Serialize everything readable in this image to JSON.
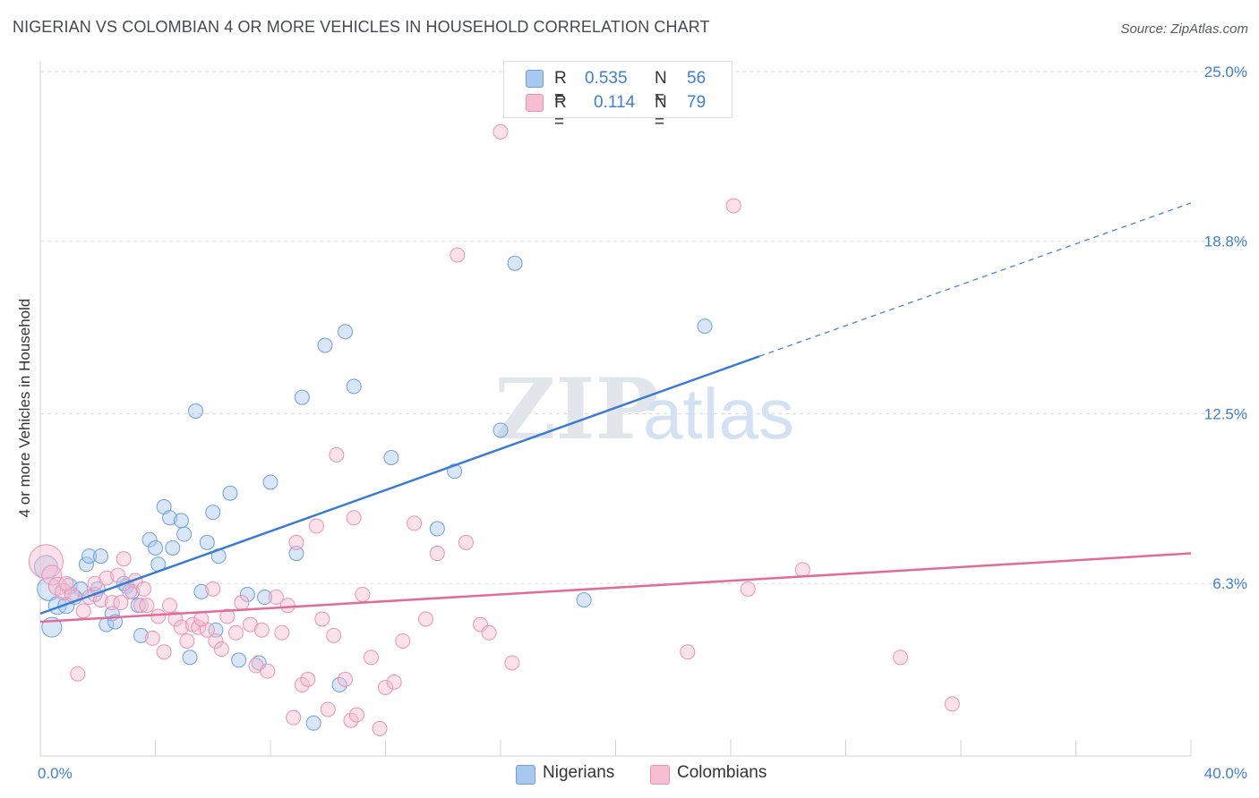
{
  "title": "NIGERIAN VS COLOMBIAN 4 OR MORE VEHICLES IN HOUSEHOLD CORRELATION CHART",
  "source": "Source: ZipAtlas.com",
  "watermark": {
    "zip": "ZIP",
    "atlas": "atlas"
  },
  "legend": {
    "r_label": "R =",
    "n_label": "N =",
    "nigerians": {
      "r": "0.535",
      "n": "56"
    },
    "colombians": {
      "r": "0.114",
      "n": "79"
    }
  },
  "colors": {
    "nigerians_fill": "#a9c8ef",
    "nigerians_stroke": "#6e9fdc",
    "nigerians_line": "#3a7bd5",
    "colombians_fill": "#f7bdd0",
    "colombians_stroke": "#ea93b1",
    "colombians_line": "#e06c97",
    "tick_label": "#3f7fd4"
  },
  "chart_data": {
    "type": "scatter",
    "title": "NIGERIAN VS COLOMBIAN 4 OR MORE VEHICLES IN HOUSEHOLD CORRELATION CHART",
    "xlabel": "",
    "ylabel": "4 or more Vehicles in Household",
    "xlim": [
      0,
      40
    ],
    "ylim": [
      0,
      25
    ],
    "x_tick_labels": [
      "0.0%",
      "40.0%"
    ],
    "y_ticks": [
      6.3,
      12.5,
      18.8,
      25.0
    ],
    "y_tick_labels": [
      "6.3%",
      "12.5%",
      "18.8%",
      "25.0%"
    ],
    "grid": true,
    "series": [
      {
        "name": "Nigerians",
        "r": 0.535,
        "n": 56,
        "trend": {
          "x0": 0,
          "y0": 5.2,
          "x1": 25,
          "y1": 14.6,
          "dash_to_x": 40,
          "dash_to_y": 20.2
        },
        "points": [
          [
            0.2,
            6.9,
            12
          ],
          [
            0.3,
            6.1,
            12
          ],
          [
            0.4,
            4.7,
            10
          ],
          [
            0.6,
            5.5,
            9
          ],
          [
            0.9,
            5.5,
            8
          ],
          [
            1.0,
            6.2,
            8
          ],
          [
            1.4,
            6.1,
            7
          ],
          [
            1.6,
            7.0,
            7
          ],
          [
            1.7,
            7.3,
            7
          ],
          [
            1.9,
            5.9,
            7
          ],
          [
            2.0,
            6.1,
            7
          ],
          [
            2.1,
            7.3,
            7
          ],
          [
            2.3,
            4.8,
            7
          ],
          [
            2.5,
            5.2,
            7
          ],
          [
            2.6,
            4.9,
            7
          ],
          [
            3.0,
            6.2,
            7
          ],
          [
            3.2,
            6.0,
            7
          ],
          [
            3.4,
            5.5,
            7
          ],
          [
            3.5,
            4.4,
            7
          ],
          [
            3.8,
            7.9,
            7
          ],
          [
            4.0,
            7.6,
            7
          ],
          [
            4.1,
            7.0,
            7
          ],
          [
            4.3,
            9.1,
            7
          ],
          [
            4.5,
            8.7,
            7
          ],
          [
            4.6,
            7.6,
            7
          ],
          [
            4.9,
            8.6,
            7
          ],
          [
            5.0,
            8.1,
            7
          ],
          [
            5.2,
            3.6,
            7
          ],
          [
            5.4,
            12.6,
            7
          ],
          [
            5.6,
            6.0,
            7
          ],
          [
            5.8,
            7.8,
            7
          ],
          [
            6.0,
            8.9,
            7
          ],
          [
            6.1,
            4.6,
            7
          ],
          [
            6.2,
            7.3,
            7
          ],
          [
            6.6,
            9.6,
            7
          ],
          [
            6.9,
            3.5,
            7
          ],
          [
            7.2,
            5.9,
            7
          ],
          [
            7.6,
            3.4,
            7
          ],
          [
            7.8,
            5.8,
            7
          ],
          [
            8.0,
            10.0,
            7
          ],
          [
            8.9,
            7.4,
            7
          ],
          [
            9.1,
            13.1,
            7
          ],
          [
            9.5,
            1.2,
            7
          ],
          [
            9.9,
            15.0,
            7
          ],
          [
            10.4,
            2.6,
            7
          ],
          [
            10.6,
            15.5,
            7
          ],
          [
            10.9,
            13.5,
            7
          ],
          [
            12.2,
            10.9,
            7
          ],
          [
            13.8,
            8.3,
            7
          ],
          [
            14.4,
            10.4,
            7
          ],
          [
            16.0,
            11.9,
            7
          ],
          [
            16.5,
            18.0,
            7
          ],
          [
            18.9,
            5.7,
            7
          ],
          [
            23.1,
            15.7,
            7
          ],
          [
            2.9,
            6.3,
            7
          ],
          [
            1.2,
            5.8,
            7
          ]
        ]
      },
      {
        "name": "Colombians",
        "r": 0.114,
        "n": 79,
        "trend": {
          "x0": 0,
          "y0": 4.9,
          "x1": 40,
          "y1": 7.4
        },
        "points": [
          [
            0.2,
            7.1,
            18
          ],
          [
            0.4,
            6.6,
            10
          ],
          [
            0.6,
            6.2,
            9
          ],
          [
            0.8,
            6.0,
            8
          ],
          [
            1.3,
            3.0,
            7
          ],
          [
            1.5,
            5.3,
            7
          ],
          [
            1.7,
            5.8,
            7
          ],
          [
            1.9,
            6.3,
            7
          ],
          [
            2.1,
            5.7,
            7
          ],
          [
            2.3,
            6.5,
            7
          ],
          [
            2.5,
            5.6,
            7
          ],
          [
            2.7,
            6.6,
            7
          ],
          [
            2.9,
            7.2,
            7
          ],
          [
            3.1,
            6.0,
            7
          ],
          [
            3.3,
            6.4,
            7
          ],
          [
            3.5,
            5.5,
            7
          ],
          [
            3.6,
            6.1,
            7
          ],
          [
            3.9,
            4.3,
            7
          ],
          [
            4.1,
            5.1,
            7
          ],
          [
            4.3,
            3.8,
            7
          ],
          [
            4.5,
            5.5,
            7
          ],
          [
            4.7,
            5.0,
            7
          ],
          [
            4.9,
            4.7,
            7
          ],
          [
            5.1,
            4.2,
            7
          ],
          [
            5.3,
            4.8,
            7
          ],
          [
            5.5,
            4.7,
            7
          ],
          [
            5.8,
            4.6,
            7
          ],
          [
            6.0,
            6.1,
            7
          ],
          [
            6.1,
            4.2,
            7
          ],
          [
            6.3,
            3.9,
            7
          ],
          [
            6.5,
            5.1,
            7
          ],
          [
            6.8,
            4.5,
            7
          ],
          [
            7.0,
            5.6,
            7
          ],
          [
            7.3,
            4.8,
            7
          ],
          [
            7.5,
            3.3,
            7
          ],
          [
            7.7,
            4.6,
            7
          ],
          [
            7.9,
            3.1,
            7
          ],
          [
            8.2,
            5.8,
            7
          ],
          [
            8.4,
            4.5,
            7
          ],
          [
            8.6,
            5.5,
            7
          ],
          [
            8.8,
            1.4,
            7
          ],
          [
            9.1,
            2.6,
            7
          ],
          [
            9.3,
            2.8,
            7
          ],
          [
            9.6,
            8.4,
            7
          ],
          [
            9.8,
            5.0,
            7
          ],
          [
            10.0,
            1.7,
            7
          ],
          [
            10.2,
            4.4,
            7
          ],
          [
            10.3,
            11.0,
            7
          ],
          [
            10.6,
            2.8,
            7
          ],
          [
            10.8,
            1.3,
            7
          ],
          [
            11.0,
            1.5,
            7
          ],
          [
            11.2,
            5.9,
            7
          ],
          [
            11.5,
            3.6,
            7
          ],
          [
            11.8,
            1.0,
            7
          ],
          [
            12.0,
            2.5,
            7
          ],
          [
            12.3,
            2.7,
            7
          ],
          [
            12.6,
            4.2,
            7
          ],
          [
            13.0,
            8.5,
            7
          ],
          [
            13.4,
            5.0,
            7
          ],
          [
            13.8,
            7.4,
            7
          ],
          [
            14.5,
            18.3,
            7
          ],
          [
            14.8,
            7.8,
            7
          ],
          [
            15.3,
            4.8,
            7
          ],
          [
            15.6,
            4.5,
            7
          ],
          [
            16.0,
            22.8,
            7
          ],
          [
            16.4,
            3.4,
            7
          ],
          [
            22.5,
            3.8,
            7
          ],
          [
            24.1,
            20.1,
            7
          ],
          [
            24.6,
            6.1,
            7
          ],
          [
            26.5,
            6.8,
            7
          ],
          [
            29.9,
            3.6,
            7
          ],
          [
            31.7,
            1.9,
            7
          ],
          [
            8.9,
            7.8,
            7
          ],
          [
            10.9,
            8.7,
            7
          ],
          [
            2.8,
            5.6,
            7
          ],
          [
            1.1,
            5.9,
            7
          ],
          [
            3.7,
            5.5,
            7
          ],
          [
            0.9,
            6.3,
            7
          ],
          [
            5.6,
            5.0,
            7
          ]
        ]
      }
    ]
  },
  "bottom_legend": {
    "nigerians": "Nigerians",
    "colombians": "Colombians"
  }
}
